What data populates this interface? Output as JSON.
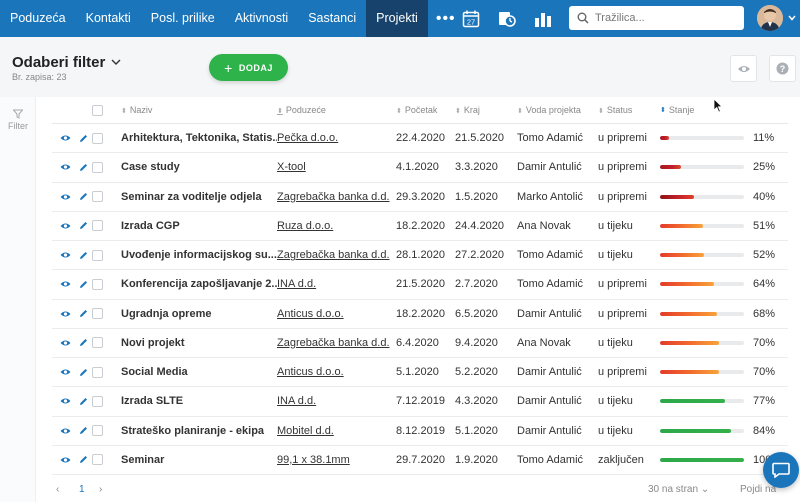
{
  "nav": {
    "items": [
      "Poduzeća",
      "Kontakti",
      "Posl. prilike",
      "Aktivnosti",
      "Sastanci",
      "Projekti"
    ],
    "active_index": 5,
    "more": "•••",
    "calendar_day": "27",
    "search_placeholder": "Tražilica..."
  },
  "subheader": {
    "title": "Odaberi filter",
    "count": "Br. zapisa: 23",
    "add_label": "DODAJ"
  },
  "sidebar": {
    "filter_label": "Filter"
  },
  "table": {
    "headers": {
      "name": "Naziv",
      "company": "Poduzeće",
      "start": "Početak",
      "end": "Kraj",
      "lead": "Voda projekta",
      "status": "Status",
      "progress": "Stanje"
    },
    "rows": [
      {
        "name": "Arhitektura, Tektonika, Statis...",
        "company": "Pečka d.o.o.",
        "start": "22.4.2020",
        "end": "21.5.2020",
        "lead": "Tomo Adamić",
        "status": "u pripremi",
        "progress": 11,
        "pct": "11%"
      },
      {
        "name": "Case study",
        "company": "X-tool",
        "start": "4.1.2020",
        "end": "3.3.2020",
        "lead": "Damir Antulić",
        "status": "u pripremi",
        "progress": 25,
        "pct": "25%"
      },
      {
        "name": "Seminar za voditelje odjela",
        "company": "Zagrebačka banka d.d.",
        "start": "29.3.2020",
        "end": "1.5.2020",
        "lead": "Marko Antolić",
        "status": "u pripremi",
        "progress": 40,
        "pct": "40%"
      },
      {
        "name": "Izrada CGP",
        "company": "Ruza d.o.o.",
        "start": "18.2.2020",
        "end": "24.4.2020",
        "lead": "Ana Novak",
        "status": "u tijeku",
        "progress": 51,
        "pct": "51%"
      },
      {
        "name": "Uvođenje informacijskog su...",
        "company": "Zagrebačka banka d.d.",
        "start": "28.1.2020",
        "end": "27.2.2020",
        "lead": "Tomo Adamić",
        "status": "u tijeku",
        "progress": 52,
        "pct": "52%"
      },
      {
        "name": "Konferencija zapošljavanje 2...",
        "company": "INA d.d.",
        "start": "21.5.2020",
        "end": "2.7.2020",
        "lead": "Tomo Adamić",
        "status": "u pripremi",
        "progress": 64,
        "pct": "64%"
      },
      {
        "name": "Ugradnja opreme",
        "company": "Anticus d.o.o.",
        "start": "18.2.2020",
        "end": "6.5.2020",
        "lead": "Damir Antulić",
        "status": "u pripremi",
        "progress": 68,
        "pct": "68%"
      },
      {
        "name": "Novi projekt",
        "company": "Zagrebačka banka d.d.",
        "start": "6.4.2020",
        "end": "9.4.2020",
        "lead": "Ana Novak",
        "status": "u tijeku",
        "progress": 70,
        "pct": "70%"
      },
      {
        "name": "Social Media",
        "company": "Anticus d.o.o.",
        "start": "5.1.2020",
        "end": "5.2.2020",
        "lead": "Damir Antulić",
        "status": "u pripremi",
        "progress": 70,
        "pct": "70%"
      },
      {
        "name": "Izrada SLTE",
        "company": "INA d.d.",
        "start": "7.12.2019",
        "end": "4.3.2020",
        "lead": "Damir Antulić",
        "status": "u tijeku",
        "progress": 77,
        "pct": "77%"
      },
      {
        "name": "Strateško planiranje - ekipa",
        "company": "Mobitel d.d.",
        "start": "8.12.2019",
        "end": "5.1.2020",
        "lead": "Damir Antulić",
        "status": "u tijeku",
        "progress": 84,
        "pct": "84%"
      },
      {
        "name": "Seminar",
        "company": "99,1 x 38.1mm",
        "start": "29.7.2020",
        "end": "1.9.2020",
        "lead": "Tomo Adamić",
        "status": "zaključen",
        "progress": 100,
        "pct": "100%"
      }
    ]
  },
  "footer": {
    "page": "1",
    "per_page": "30 na stran",
    "goto": "Pojdi na"
  },
  "colors": {
    "nav_bg": "#1b75bb",
    "nav_active": "#17426b",
    "add_button": "#2db34a",
    "bar_red": "#c0202a",
    "bar_orange": "#f26a2e",
    "bar_green": "#33b04a"
  },
  "icons": [
    "calendar-icon",
    "timer-icon",
    "bar-chart-icon",
    "search-icon",
    "eye-icon",
    "pencil-icon",
    "help-icon",
    "filter-icon",
    "chat-icon"
  ]
}
